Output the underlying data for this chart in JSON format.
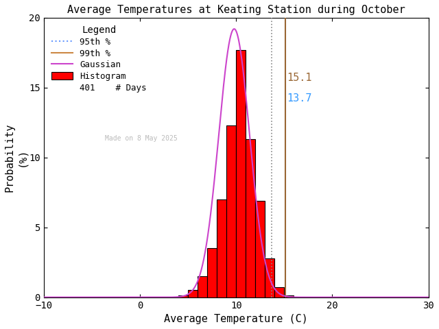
{
  "title": "Average Temperatures at Keating Station during October",
  "xlabel": "Average Temperature (C)",
  "ylabel": "Probability\n(%)",
  "xlim": [
    -10,
    30
  ],
  "ylim": [
    0,
    20
  ],
  "xticks": [
    -10,
    0,
    10,
    20,
    30
  ],
  "yticks": [
    0,
    5,
    10,
    15,
    20
  ],
  "bin_edges": [
    4,
    5,
    6,
    7,
    8,
    9,
    10,
    11,
    12,
    13,
    14,
    15
  ],
  "bin_heights": [
    0.12,
    0.5,
    1.5,
    3.5,
    7.0,
    12.3,
    17.7,
    11.3,
    6.9,
    2.8,
    0.7,
    0.15
  ],
  "hist_color": "#ff0000",
  "hist_edge_color": "#000000",
  "gaussian_color": "#cc44cc",
  "gaussian_mean": 9.8,
  "gaussian_std": 1.6,
  "gaussian_peak": 19.2,
  "pct95_value": 13.7,
  "pct99_value": 15.1,
  "pct95_line_color": "#888888",
  "pct99_line_color": "#996633",
  "pct95_label_color": "#3399ff",
  "pct99_label_color": "#996633",
  "pct95_legend_color": "#6699ff",
  "pct99_legend_color": "#cc8844",
  "n_days": 401,
  "watermark": "Made on 8 May 2025",
  "watermark_color": "#bbbbbb",
  "background_color": "#ffffff",
  "title_fontsize": 11,
  "axis_fontsize": 11,
  "tick_fontsize": 10,
  "legend_fontsize": 9,
  "annot_fontsize": 11
}
